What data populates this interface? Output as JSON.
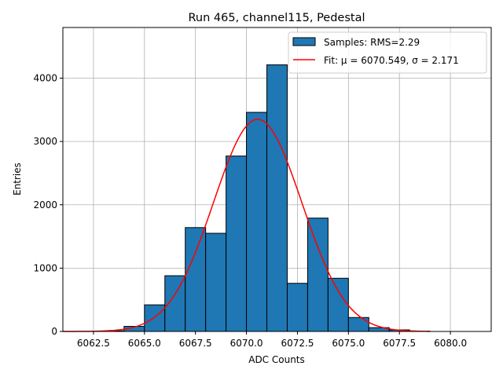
{
  "chart_data": {
    "type": "bar",
    "title": "Run 465, channel115, Pedestal",
    "xlabel": "ADC Counts",
    "ylabel": "Entries",
    "xlim": [
      6061,
      6082
    ],
    "ylim": [
      0,
      4800
    ],
    "grid": true,
    "legend_position": "top-right",
    "xticks": [
      "6062.5",
      "6065.0",
      "6067.5",
      "6070.0",
      "6072.5",
      "6075.0",
      "6077.5",
      "6080.0"
    ],
    "xtick_values": [
      6062.5,
      6065.0,
      6067.5,
      6070.0,
      6072.5,
      6075.0,
      6077.5,
      6080.0
    ],
    "yticks": [
      "0",
      "1000",
      "2000",
      "3000",
      "4000"
    ],
    "ytick_values": [
      0,
      1000,
      2000,
      3000,
      4000
    ],
    "histogram": {
      "name": "Samples: RMS=2.29",
      "color": "#1f77b4",
      "edgecolor": "#000000",
      "bins": [
        {
          "x0": 6063.0,
          "x1": 6064.0,
          "value": 10
        },
        {
          "x0": 6064.0,
          "x1": 6065.0,
          "value": 80
        },
        {
          "x0": 6065.0,
          "x1": 6066.0,
          "value": 420
        },
        {
          "x0": 6066.0,
          "x1": 6067.0,
          "value": 880
        },
        {
          "x0": 6067.0,
          "x1": 6068.0,
          "value": 1640
        },
        {
          "x0": 6068.0,
          "x1": 6069.0,
          "value": 1550
        },
        {
          "x0": 6069.0,
          "x1": 6070.0,
          "value": 2770
        },
        {
          "x0": 6070.0,
          "x1": 6071.0,
          "value": 3460
        },
        {
          "x0": 6071.0,
          "x1": 6072.0,
          "value": 4210
        },
        {
          "x0": 6072.0,
          "x1": 6073.0,
          "value": 760
        },
        {
          "x0": 6073.0,
          "x1": 6074.0,
          "value": 1790
        },
        {
          "x0": 6074.0,
          "x1": 6075.0,
          "value": 840
        },
        {
          "x0": 6075.0,
          "x1": 6076.0,
          "value": 220
        },
        {
          "x0": 6076.0,
          "x1": 6077.0,
          "value": 60
        },
        {
          "x0": 6077.0,
          "x1": 6078.0,
          "value": 25
        },
        {
          "x0": 6078.0,
          "x1": 6079.0,
          "value": 5
        }
      ]
    },
    "fit": {
      "name": "Fit: μ = 6070.549, σ = 2.171",
      "color": "#ff0000",
      "mu": 6070.549,
      "sigma": 2.171,
      "amplitude": 3350,
      "x_range": [
        6061,
        6079
      ]
    }
  }
}
